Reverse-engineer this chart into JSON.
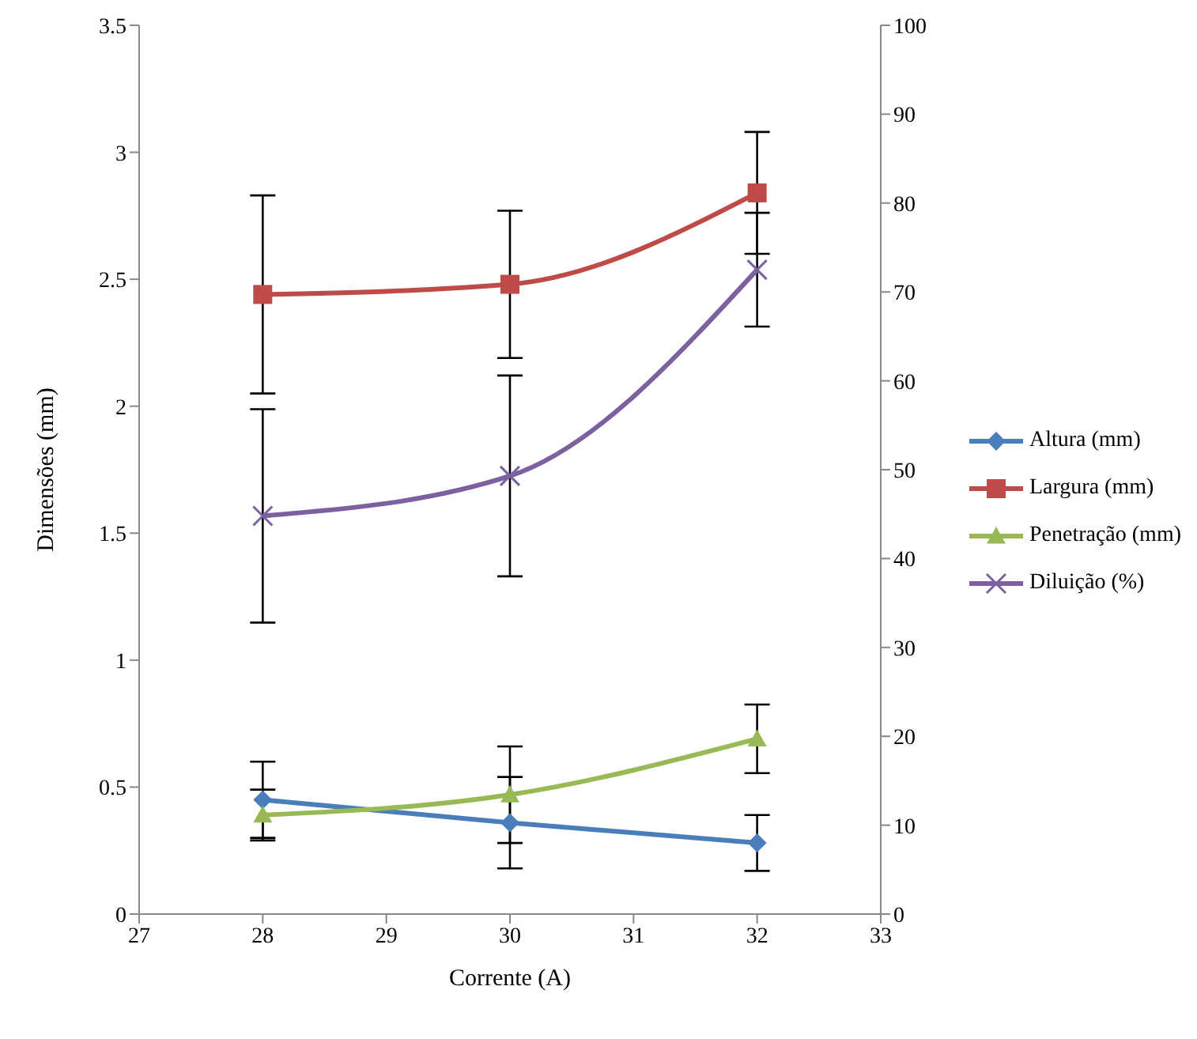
{
  "chart_data": {
    "type": "line",
    "xlabel": "Corrente (A)",
    "ylabel": "Dimensões (mm)",
    "x": [
      28,
      30,
      32
    ],
    "xlim": [
      27,
      33
    ],
    "xticks": [
      27,
      28,
      29,
      30,
      31,
      32,
      33
    ],
    "ylim": [
      0,
      3.5
    ],
    "yticks": [
      0,
      0.5,
      1,
      1.5,
      2,
      2.5,
      3,
      3.5
    ],
    "y2lim": [
      0,
      100
    ],
    "y2ticks": [
      0,
      10,
      20,
      30,
      40,
      50,
      60,
      70,
      80,
      90,
      100
    ],
    "legend": "right",
    "series": [
      {
        "name": "Altura (mm)",
        "color": "#4a7ebb",
        "marker": "diamond",
        "values": [
          0.45,
          0.36,
          0.28
        ],
        "errors": [
          0.15,
          0.18,
          0.11
        ]
      },
      {
        "name": "Largura (mm)",
        "color": "#be4b48",
        "marker": "square",
        "values": [
          2.44,
          2.48,
          2.84
        ],
        "errors": [
          0.39,
          0.29,
          0.24
        ]
      },
      {
        "name": "Penetração (mm)",
        "color": "#98b954",
        "marker": "triangle",
        "values": [
          0.39,
          0.47,
          0.69
        ],
        "errors": [
          0.1,
          0.19,
          0.135
        ]
      },
      {
        "name": "Diluição (%)",
        "color": "#7d60a0",
        "marker": "cross",
        "axis": "y2",
        "values": [
          44.8,
          49.3,
          72.5
        ],
        "errors": [
          12,
          11.3,
          6.4
        ]
      }
    ]
  }
}
